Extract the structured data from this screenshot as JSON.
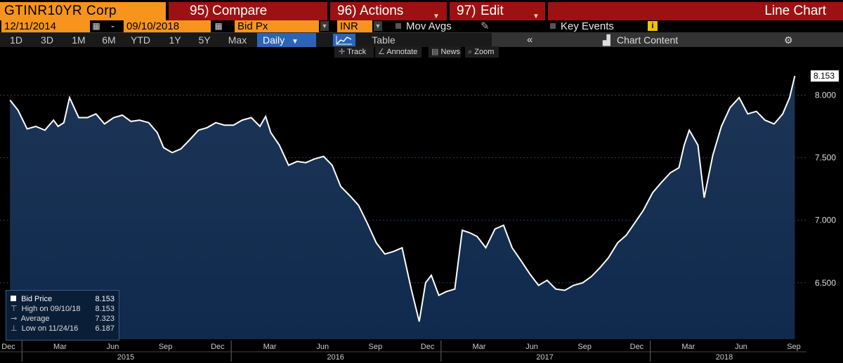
{
  "toolbar": {
    "ticker": "GTINR10YR Corp",
    "compare_num": "95)",
    "compare_label": "Compare",
    "actions_num": "96)",
    "actions_label": "Actions",
    "edit_num": "97)",
    "edit_label": "Edit",
    "chart_type": "Line Chart",
    "start_date": "12/11/2014",
    "date_sep": "-",
    "end_date": "09/10/2018",
    "field": "Bid Px",
    "currency": "INR",
    "mov_avgs": "Mov Avgs",
    "key_events": "Key Events",
    "key_events_icon": "i",
    "periods": [
      "1D",
      "3D",
      "1M",
      "6M",
      "YTD",
      "1Y",
      "5Y",
      "Max"
    ],
    "frequency": "Daily",
    "table_label": "Table",
    "collapse_label": "«",
    "chart_content_label": "Chart Content",
    "gear_label": "⚙"
  },
  "chart_tools": {
    "track": "Track",
    "annotate": "Annotate",
    "news": "News",
    "zoom": "Zoom"
  },
  "legend": {
    "series_name": "Bid Price",
    "series_value": "8.153",
    "high_label": "High on 09/10/18",
    "high_value": "8.153",
    "avg_label": "Average",
    "avg_value": "7.323",
    "low_label": "Low on 11/24/16",
    "low_value": "6.187"
  },
  "colors": {
    "background": "#000000",
    "area_top": "#1d3557",
    "area_bottom": "#0f2a4d",
    "line": "#ffffff",
    "accent_orange": "#f7941d",
    "button_red": "#9c1212",
    "selected_blue": "#2d64b8"
  },
  "chart_data": {
    "type": "area",
    "ylim": [
      6.05,
      8.3
    ],
    "yticks": [
      6.5,
      7.0,
      7.5,
      8.0
    ],
    "ytick_labels": [
      "6.500",
      "7.000",
      "7.500",
      "8.000"
    ],
    "last_value_label": "8.153",
    "month_ticks": [
      "Dec",
      "Mar",
      "Jun",
      "Sep",
      "Dec",
      "Mar",
      "Jun",
      "Sep",
      "Dec",
      "Mar",
      "Jun",
      "Sep",
      "Dec",
      "Mar",
      "Jun",
      "Sep"
    ],
    "year_labels": [
      "2015",
      "2016",
      "2017",
      "2018"
    ],
    "grid": true,
    "series": [
      {
        "name": "Bid Price",
        "x": [
          "2014-12-11",
          "2014-12-25",
          "2015-01-10",
          "2015-01-25",
          "2015-02-10",
          "2015-02-25",
          "2015-03-05",
          "2015-03-15",
          "2015-03-25",
          "2015-04-10",
          "2015-04-25",
          "2015-05-10",
          "2015-05-25",
          "2015-06-10",
          "2015-06-25",
          "2015-07-10",
          "2015-07-25",
          "2015-08-10",
          "2015-08-25",
          "2015-09-05",
          "2015-09-20",
          "2015-10-05",
          "2015-10-20",
          "2015-11-05",
          "2015-11-20",
          "2015-12-05",
          "2015-12-20",
          "2016-01-05",
          "2016-01-20",
          "2016-02-05",
          "2016-02-20",
          "2016-03-01",
          "2016-03-10",
          "2016-03-25",
          "2016-04-10",
          "2016-04-25",
          "2016-05-10",
          "2016-05-25",
          "2016-06-10",
          "2016-06-25",
          "2016-07-10",
          "2016-07-25",
          "2016-08-10",
          "2016-08-25",
          "2016-09-10",
          "2016-09-25",
          "2016-10-10",
          "2016-10-25",
          "2016-11-10",
          "2016-11-24",
          "2016-12-05",
          "2016-12-15",
          "2016-12-28",
          "2017-01-10",
          "2017-01-25",
          "2017-02-07",
          "2017-02-20",
          "2017-03-05",
          "2017-03-20",
          "2017-04-05",
          "2017-04-20",
          "2017-05-05",
          "2017-05-20",
          "2017-06-05",
          "2017-06-20",
          "2017-07-05",
          "2017-07-20",
          "2017-08-05",
          "2017-08-20",
          "2017-09-05",
          "2017-09-20",
          "2017-10-05",
          "2017-10-20",
          "2017-11-05",
          "2017-11-20",
          "2017-12-05",
          "2017-12-20",
          "2018-01-05",
          "2018-01-20",
          "2018-02-05",
          "2018-02-20",
          "2018-03-01",
          "2018-03-10",
          "2018-03-25",
          "2018-04-05",
          "2018-04-20",
          "2018-05-05",
          "2018-05-20",
          "2018-06-05",
          "2018-06-20",
          "2018-07-05",
          "2018-07-20",
          "2018-08-05",
          "2018-08-20",
          "2018-09-01",
          "2018-09-10"
        ],
        "values": [
          7.96,
          7.88,
          7.73,
          7.75,
          7.72,
          7.8,
          7.75,
          7.78,
          7.98,
          7.82,
          7.82,
          7.85,
          7.77,
          7.82,
          7.84,
          7.79,
          7.8,
          7.78,
          7.7,
          7.58,
          7.54,
          7.57,
          7.64,
          7.72,
          7.74,
          7.78,
          7.76,
          7.76,
          7.8,
          7.82,
          7.75,
          7.83,
          7.7,
          7.6,
          7.44,
          7.47,
          7.46,
          7.49,
          7.51,
          7.44,
          7.27,
          7.2,
          7.12,
          6.98,
          6.82,
          6.73,
          6.75,
          6.78,
          6.45,
          6.19,
          6.5,
          6.56,
          6.4,
          6.43,
          6.45,
          6.92,
          6.9,
          6.87,
          6.78,
          6.93,
          6.96,
          6.78,
          6.68,
          6.57,
          6.48,
          6.52,
          6.45,
          6.44,
          6.48,
          6.5,
          6.55,
          6.62,
          6.7,
          6.82,
          6.88,
          6.98,
          7.08,
          7.22,
          7.3,
          7.38,
          7.42,
          7.6,
          7.72,
          7.6,
          7.18,
          7.52,
          7.75,
          7.9,
          7.98,
          7.85,
          7.87,
          7.8,
          7.77,
          7.85,
          7.98,
          8.153
        ]
      }
    ]
  }
}
